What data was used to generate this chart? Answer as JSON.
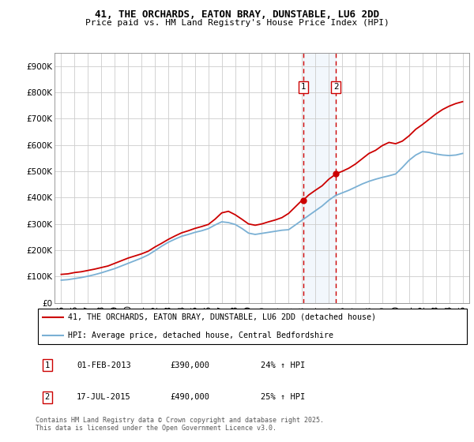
{
  "title": "41, THE ORCHARDS, EATON BRAY, DUNSTABLE, LU6 2DD",
  "subtitle": "Price paid vs. HM Land Registry's House Price Index (HPI)",
  "legend_line1": "41, THE ORCHARDS, EATON BRAY, DUNSTABLE, LU6 2DD (detached house)",
  "legend_line2": "HPI: Average price, detached house, Central Bedfordshire",
  "footnote": "Contains HM Land Registry data © Crown copyright and database right 2025.\nThis data is licensed under the Open Government Licence v3.0.",
  "sale1_label": "1",
  "sale1_date": "01-FEB-2013",
  "sale1_price": "£390,000",
  "sale1_pct": "24% ↑ HPI",
  "sale1_x": 2013.08,
  "sale1_y": 390000,
  "sale2_label": "2",
  "sale2_date": "17-JUL-2015",
  "sale2_price": "£490,000",
  "sale2_pct": "25% ↑ HPI",
  "sale2_x": 2015.54,
  "sale2_y": 490000,
  "property_color": "#cc0000",
  "hpi_color": "#7ab0d4",
  "bg_color": "#ffffff",
  "plot_bg_color": "#ffffff",
  "grid_color": "#cccccc",
  "ylim": [
    0,
    950000
  ],
  "xlim": [
    1994.5,
    2025.5
  ],
  "yticks": [
    0,
    100000,
    200000,
    300000,
    400000,
    500000,
    600000,
    700000,
    800000,
    900000
  ],
  "ytick_labels": [
    "£0",
    "£100K",
    "£200K",
    "£300K",
    "£400K",
    "£500K",
    "£600K",
    "£700K",
    "£800K",
    "£900K"
  ],
  "xticks": [
    1995,
    1996,
    1997,
    1998,
    1999,
    2000,
    2001,
    2002,
    2003,
    2004,
    2005,
    2006,
    2007,
    2008,
    2009,
    2010,
    2011,
    2012,
    2013,
    2014,
    2015,
    2016,
    2017,
    2018,
    2019,
    2020,
    2021,
    2022,
    2023,
    2024,
    2025
  ],
  "property_x": [
    1995.0,
    1995.5,
    1996.0,
    1996.5,
    1997.0,
    1997.5,
    1998.0,
    1998.5,
    1999.0,
    1999.5,
    2000.0,
    2000.5,
    2001.0,
    2001.5,
    2002.0,
    2002.5,
    2003.0,
    2003.5,
    2004.0,
    2004.5,
    2005.0,
    2005.5,
    2006.0,
    2006.5,
    2007.0,
    2007.5,
    2008.0,
    2008.5,
    2009.0,
    2009.5,
    2010.0,
    2010.5,
    2011.0,
    2011.5,
    2012.0,
    2012.5,
    2013.0,
    2013.08,
    2013.5,
    2014.0,
    2014.5,
    2015.0,
    2015.54,
    2015.5,
    2016.0,
    2016.5,
    2017.0,
    2017.5,
    2018.0,
    2018.5,
    2019.0,
    2019.5,
    2020.0,
    2020.5,
    2021.0,
    2021.5,
    2022.0,
    2022.5,
    2023.0,
    2023.5,
    2024.0,
    2024.5,
    2025.0
  ],
  "property_y": [
    108000,
    110000,
    115000,
    118000,
    123000,
    128000,
    134000,
    140000,
    150000,
    160000,
    170000,
    178000,
    186000,
    196000,
    212000,
    226000,
    241000,
    254000,
    266000,
    274000,
    283000,
    290000,
    298000,
    318000,
    342000,
    348000,
    335000,
    318000,
    300000,
    295000,
    300000,
    308000,
    315000,
    324000,
    340000,
    365000,
    390000,
    390000,
    410000,
    428000,
    445000,
    470000,
    490000,
    490000,
    500000,
    512000,
    528000,
    548000,
    568000,
    580000,
    598000,
    610000,
    605000,
    615000,
    635000,
    660000,
    678000,
    698000,
    718000,
    735000,
    748000,
    758000,
    765000
  ],
  "hpi_x": [
    1995.0,
    1995.5,
    1996.0,
    1996.5,
    1997.0,
    1997.5,
    1998.0,
    1998.5,
    1999.0,
    1999.5,
    2000.0,
    2000.5,
    2001.0,
    2001.5,
    2002.0,
    2002.5,
    2003.0,
    2003.5,
    2004.0,
    2004.5,
    2005.0,
    2005.5,
    2006.0,
    2006.5,
    2007.0,
    2007.5,
    2008.0,
    2008.5,
    2009.0,
    2009.5,
    2010.0,
    2010.5,
    2011.0,
    2011.5,
    2012.0,
    2012.5,
    2013.0,
    2013.5,
    2014.0,
    2014.5,
    2015.0,
    2015.5,
    2016.0,
    2016.5,
    2017.0,
    2017.5,
    2018.0,
    2018.5,
    2019.0,
    2019.5,
    2020.0,
    2020.5,
    2021.0,
    2021.5,
    2022.0,
    2022.5,
    2023.0,
    2023.5,
    2024.0,
    2024.5,
    2025.0
  ],
  "hpi_y": [
    86000,
    88000,
    92000,
    96000,
    101000,
    107000,
    114000,
    122000,
    130000,
    140000,
    150000,
    160000,
    170000,
    182000,
    198000,
    215000,
    230000,
    242000,
    253000,
    260000,
    268000,
    274000,
    282000,
    296000,
    308000,
    305000,
    298000,
    283000,
    265000,
    260000,
    264000,
    268000,
    272000,
    276000,
    278000,
    296000,
    314000,
    332000,
    350000,
    368000,
    390000,
    408000,
    418000,
    428000,
    440000,
    452000,
    462000,
    470000,
    477000,
    483000,
    490000,
    515000,
    542000,
    562000,
    575000,
    572000,
    566000,
    562000,
    560000,
    562000,
    568000
  ]
}
